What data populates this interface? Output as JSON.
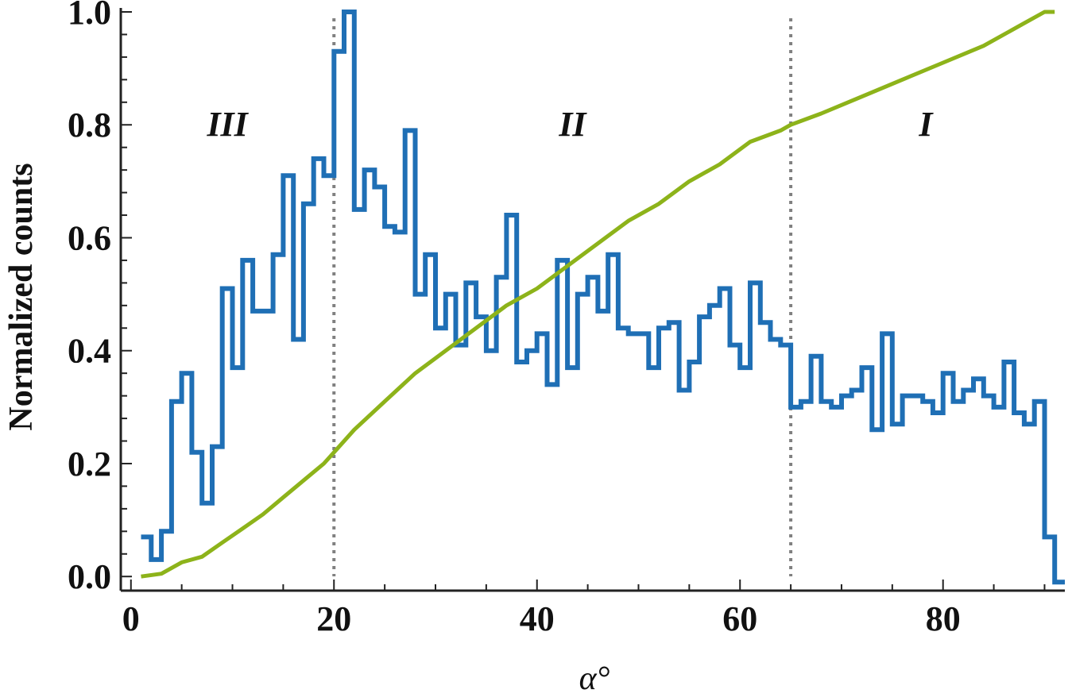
{
  "chart_data": {
    "type": "line",
    "xlabel": "α°",
    "ylabel": "Normalized  counts",
    "xlim": [
      -1,
      92
    ],
    "ylim": [
      -0.025,
      1.0
    ],
    "x_ticks": [
      0,
      20,
      40,
      60,
      80
    ],
    "y_ticks": [
      0.0,
      0.2,
      0.4,
      0.6,
      0.8,
      1.0
    ],
    "x_tick_labels": [
      "0",
      "20",
      "40",
      "60",
      "80"
    ],
    "y_tick_labels": [
      "0.0",
      "0.2",
      "0.4",
      "0.6",
      "0.8",
      "1.0"
    ],
    "grid": false,
    "legend": "none",
    "dividers": [
      20,
      65
    ],
    "regions": [
      {
        "label": "III",
        "x": 9.5,
        "y": 0.8
      },
      {
        "label": "II",
        "x": 43.5,
        "y": 0.8
      },
      {
        "label": "I",
        "x": 78.3,
        "y": 0.8
      }
    ],
    "series": [
      {
        "style": "step",
        "color": "#1f6fb5",
        "bin_width": 1,
        "x_start": 1,
        "values": [
          0.07,
          0.03,
          0.08,
          0.31,
          0.36,
          0.22,
          0.13,
          0.23,
          0.51,
          0.37,
          0.56,
          0.47,
          0.47,
          0.57,
          0.71,
          0.42,
          0.66,
          0.74,
          0.71,
          0.93,
          1.0,
          0.65,
          0.72,
          0.69,
          0.62,
          0.61,
          0.79,
          0.5,
          0.57,
          0.44,
          0.5,
          0.41,
          0.52,
          0.46,
          0.4,
          0.53,
          0.64,
          0.38,
          0.4,
          0.43,
          0.34,
          0.56,
          0.37,
          0.5,
          0.53,
          0.47,
          0.57,
          0.44,
          0.43,
          0.43,
          0.37,
          0.44,
          0.45,
          0.33,
          0.38,
          0.46,
          0.48,
          0.51,
          0.41,
          0.37,
          0.52,
          0.45,
          0.42,
          0.41,
          0.3,
          0.31,
          0.39,
          0.31,
          0.3,
          0.32,
          0.33,
          0.37,
          0.26,
          0.43,
          0.27,
          0.32,
          0.32,
          0.31,
          0.29,
          0.36,
          0.31,
          0.33,
          0.35,
          0.32,
          0.3,
          0.38,
          0.29,
          0.27,
          0.31,
          0.07,
          -0.01
        ]
      },
      {
        "style": "line",
        "color": "#8db31a",
        "x": [
          1,
          3,
          5,
          7,
          9,
          11,
          13,
          15,
          17,
          19,
          20,
          22,
          25,
          28,
          31,
          34,
          37,
          40,
          43,
          46,
          49,
          52,
          55,
          58,
          61,
          64,
          65,
          68,
          72,
          76,
          80,
          84,
          88,
          90,
          91
        ],
        "y": [
          0.0,
          0.005,
          0.025,
          0.035,
          0.06,
          0.085,
          0.11,
          0.14,
          0.17,
          0.2,
          0.22,
          0.26,
          0.31,
          0.36,
          0.4,
          0.44,
          0.48,
          0.51,
          0.55,
          0.59,
          0.63,
          0.66,
          0.7,
          0.73,
          0.77,
          0.79,
          0.8,
          0.82,
          0.85,
          0.88,
          0.91,
          0.94,
          0.98,
          1.0,
          1.0
        ]
      }
    ]
  }
}
